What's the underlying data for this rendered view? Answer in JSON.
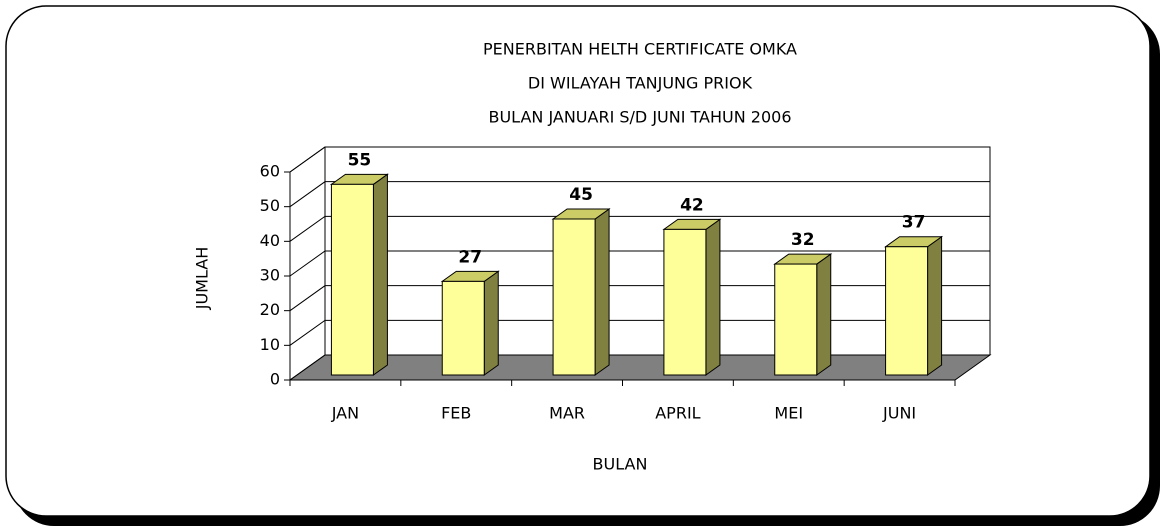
{
  "chart_data": {
    "type": "bar3d",
    "title": [
      "PENERBITAN HELTH CERTIFICATE OMKA",
      "DI WILAYAH TANJUNG PRIOK",
      "BULAN JANUARI S/D JUNI TAHUN 2006"
    ],
    "x_label": "BULAN",
    "y_label": "JUMLAH",
    "categories": [
      "JAN",
      "FEB",
      "MAR",
      "APRIL",
      "MEI",
      "JUNI"
    ],
    "values": [
      55,
      27,
      45,
      42,
      32,
      37
    ],
    "color": "#ffff99",
    "side_color": "#808040",
    "floor_color": "#808080",
    "ylim": [
      0,
      60
    ],
    "yticks": [
      0,
      10,
      20,
      30,
      40,
      50,
      60
    ],
    "grid": true
  }
}
